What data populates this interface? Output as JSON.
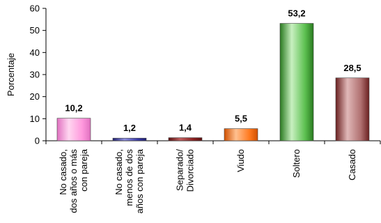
{
  "chart_data": {
    "type": "bar",
    "ylabel": "Porcentaje",
    "ylim": [
      0,
      60
    ],
    "yticks": [
      0,
      10,
      20,
      30,
      40,
      50,
      60
    ],
    "grid": false,
    "legend": "none",
    "categories": [
      [
        "No casado,",
        "dos años o más",
        "con pareja"
      ],
      [
        "No casado,",
        "menos de dos",
        "años con pareja"
      ],
      [
        "Separado/",
        "Divorciado"
      ],
      [
        "Viudo"
      ],
      [
        "Soltero"
      ],
      [
        "Casado"
      ]
    ],
    "values": [
      10.2,
      1.2,
      1.4,
      5.5,
      53.2,
      28.5
    ],
    "value_labels": [
      "10,2",
      "1,2",
      "1,4",
      "5,5",
      "53,2",
      "28,5"
    ],
    "colors": [
      {
        "light": "#ffd6f0",
        "mid": "#ff99dd",
        "dark": "#e070c0"
      },
      {
        "light": "#9090e0",
        "mid": "#3a3aa8",
        "dark": "#202070"
      },
      {
        "light": "#c06060",
        "mid": "#8a2020",
        "dark": "#5a1010"
      },
      {
        "light": "#ffc090",
        "mid": "#ff7a20",
        "dark": "#d05000"
      },
      {
        "light": "#c8f0c0",
        "mid": "#5cc050",
        "dark": "#2a7a20"
      },
      {
        "light": "#e0b8b8",
        "mid": "#b07070",
        "dark": "#6a2020"
      }
    ]
  }
}
